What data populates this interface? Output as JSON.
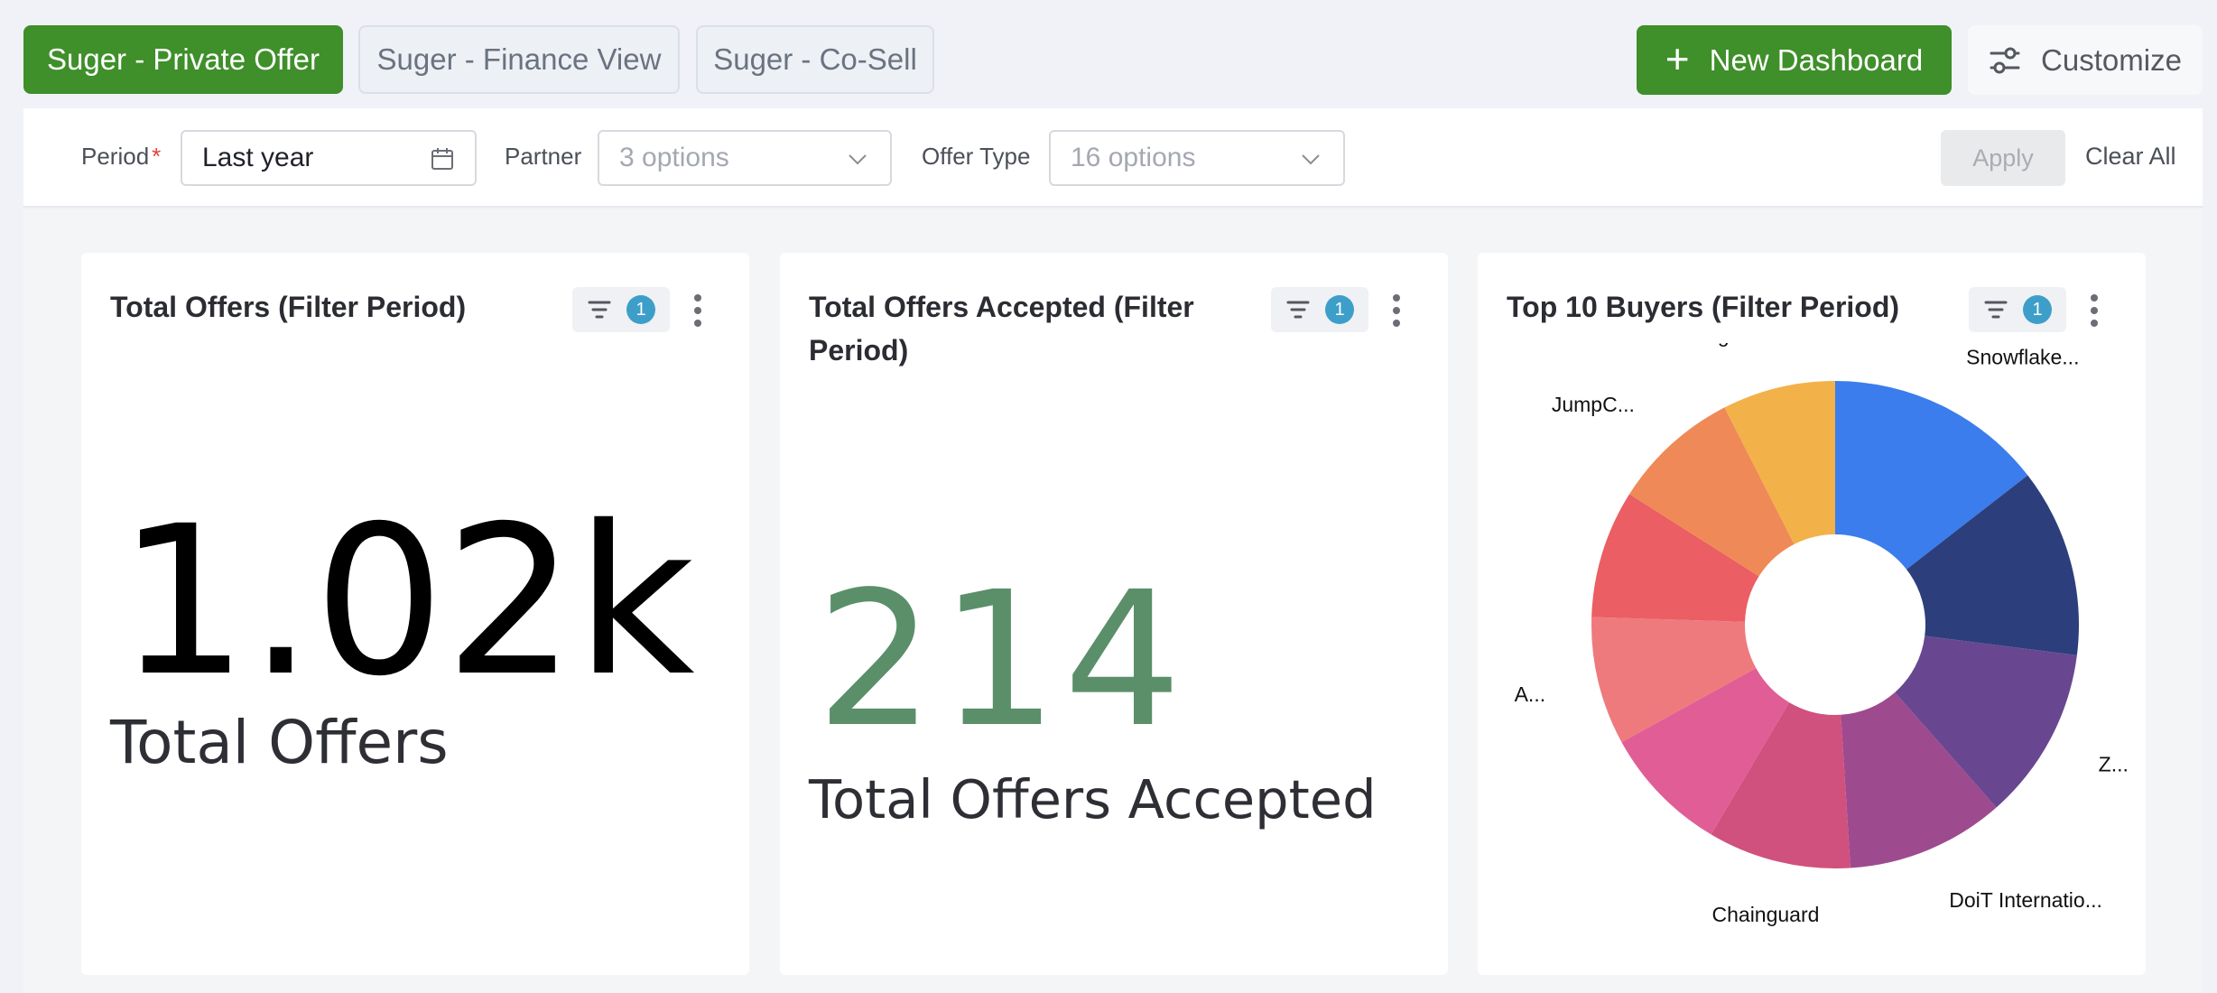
{
  "tabs": [
    {
      "label": "Suger - Private Offer",
      "active": true
    },
    {
      "label": "Suger - Finance View",
      "active": false
    },
    {
      "label": "Suger - Co-Sell",
      "active": false
    }
  ],
  "toolbar": {
    "new_dashboard_label": "New Dashboard",
    "customize_label": "Customize"
  },
  "filters": {
    "period": {
      "label": "Period",
      "required_mark": "*",
      "value": "Last year"
    },
    "partner": {
      "label": "Partner",
      "placeholder": "3 options"
    },
    "offer_type": {
      "label": "Offer Type",
      "placeholder": "16 options"
    },
    "apply_label": "Apply",
    "clear_label": "Clear All"
  },
  "cards": {
    "total_offers": {
      "title": "Total Offers (Filter Period)",
      "filter_count": "1",
      "value": "1.02k",
      "label": "Total Offers",
      "value_color": "#000000"
    },
    "offers_accepted": {
      "title_line1": "Total Offers Accepted (Filter",
      "title_line2": "Period)",
      "filter_count": "1",
      "value": "214",
      "label": "Total Offers Accepted",
      "value_color": "#5a8f6a"
    },
    "top_buyers": {
      "title": "Top 10 Buyers (Filter Period)",
      "filter_count": "1"
    }
  },
  "chart_data": {
    "type": "pie",
    "variant": "donut",
    "slices": [
      {
        "label": "Snowflake...",
        "value": 14.5,
        "color": "#3b7ded"
      },
      {
        "label": "",
        "value": 12.5,
        "color": "#2c3f7c"
      },
      {
        "label": "Z...",
        "value": 11.5,
        "color": "#684790"
      },
      {
        "label": "DoiT Internatio...",
        "value": 10.5,
        "color": "#9e4a8f"
      },
      {
        "label": "Chainguard",
        "value": 9.5,
        "color": "#d0507e"
      },
      {
        "label": "",
        "value": 8.5,
        "color": "#e15d95"
      },
      {
        "label": "A...",
        "value": 8.5,
        "color": "#ee7a7d"
      },
      {
        "label": "",
        "value": 8.5,
        "color": "#eb5e63"
      },
      {
        "label": "JumpC...",
        "value": 8.5,
        "color": "#ef8957"
      },
      {
        "label": "glean.com",
        "value": 7.5,
        "color": "#f2b149"
      }
    ]
  }
}
